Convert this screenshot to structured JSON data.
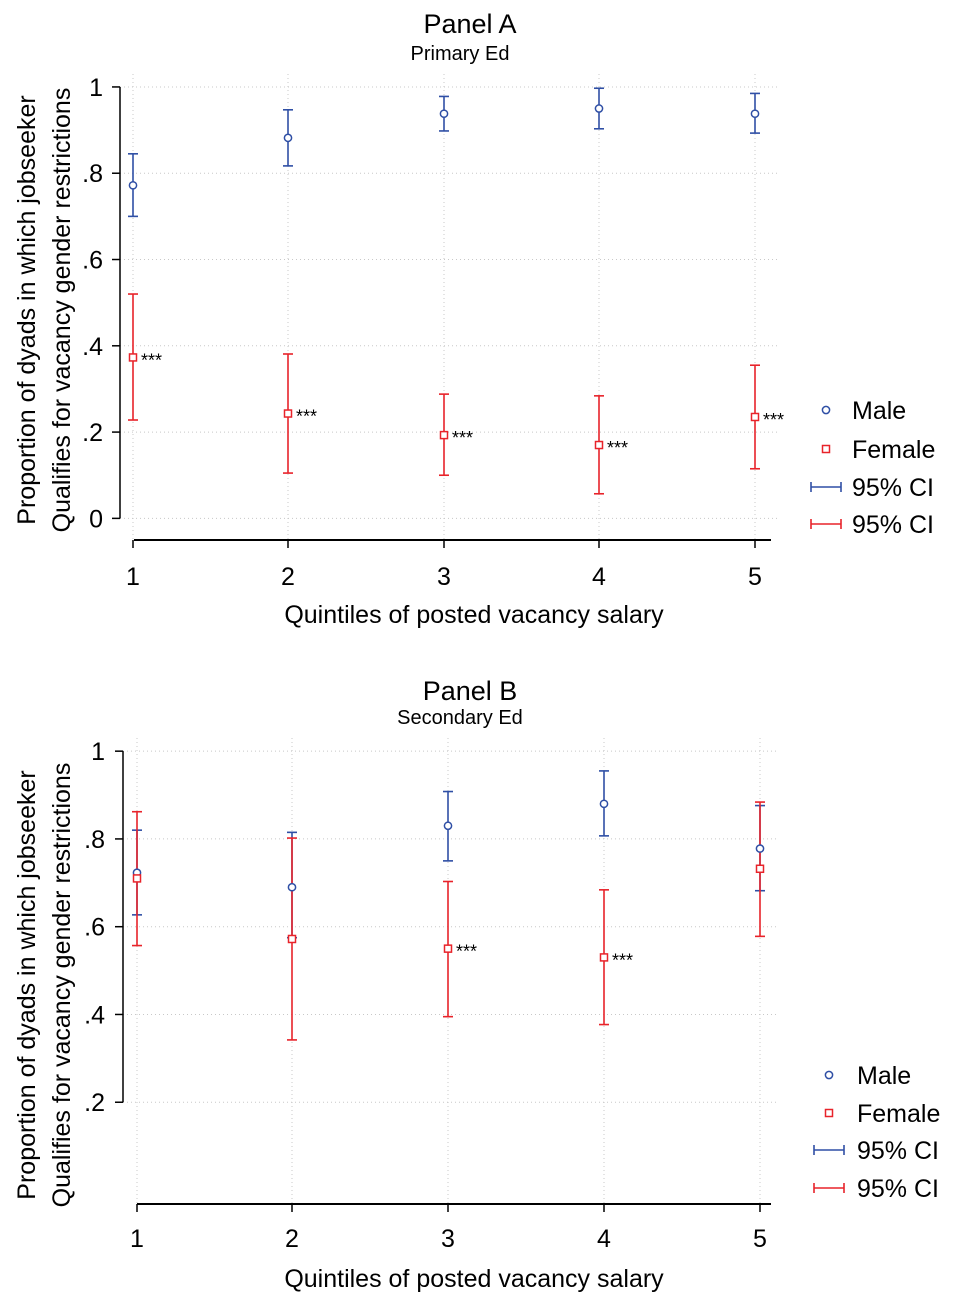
{
  "colors": {
    "male": "#2f4fa5",
    "female": "#e8232a",
    "grid": "#c8c8c8",
    "axis": "#000000"
  },
  "chart_data": [
    {
      "type": "scatter",
      "title": "Panel A",
      "subtitle": "Primary Ed",
      "xlabel": "Quintiles of posted vacancy salary",
      "ylabel_lines": [
        "Proportion of dyads in which jobseeker",
        "Qualifies for vacancy gender restrictions"
      ],
      "x": [
        1,
        2,
        3,
        4,
        5
      ],
      "x_ticks": [
        "1",
        "2",
        "3",
        "4",
        "5"
      ],
      "y_ticks": [
        {
          "value": 0,
          "label": "0"
        },
        {
          "value": 0.2,
          "label": ".2"
        },
        {
          "value": 0.4,
          "label": ".4"
        },
        {
          "value": 0.6,
          "label": ".6"
        },
        {
          "value": 0.8,
          "label": ".8"
        },
        {
          "value": 1,
          "label": "1"
        }
      ],
      "ylim": [
        -0.02,
        1.03
      ],
      "grid": true,
      "legend_position": "right",
      "series": [
        {
          "name": "Male",
          "marker": "circle",
          "values": [
            0.772,
            0.882,
            0.938,
            0.95,
            0.938
          ],
          "ci_lower": [
            0.7,
            0.817,
            0.898,
            0.903,
            0.893
          ],
          "ci_upper": [
            0.845,
            0.947,
            0.978,
            0.997,
            0.985
          ]
        },
        {
          "name": "Female",
          "marker": "square",
          "values": [
            0.373,
            0.243,
            0.193,
            0.17,
            0.235
          ],
          "ci_lower": [
            0.228,
            0.105,
            0.1,
            0.057,
            0.115
          ],
          "ci_upper": [
            0.52,
            0.381,
            0.288,
            0.284,
            0.355
          ]
        }
      ],
      "annotations": [
        {
          "x": 1,
          "y": 0.373,
          "text": "***"
        },
        {
          "x": 2,
          "y": 0.243,
          "text": "***"
        },
        {
          "x": 3,
          "y": 0.193,
          "text": "***"
        },
        {
          "x": 4,
          "y": 0.17,
          "text": "***"
        },
        {
          "x": 5,
          "y": 0.235,
          "text": "***"
        }
      ],
      "legend": [
        "Male",
        "Female",
        "95% CI",
        "95% CI"
      ]
    },
    {
      "type": "scatter",
      "title": "Panel B",
      "subtitle": "Secondary Ed",
      "xlabel": "Quintiles of posted vacancy salary",
      "ylabel_lines": [
        "Proportion of dyads in which jobseeker",
        "Qualifies for vacancy gender restrictions"
      ],
      "x": [
        1,
        2,
        3,
        4,
        5
      ],
      "x_ticks": [
        "1",
        "2",
        "3",
        "4",
        "5"
      ],
      "y_ticks": [
        {
          "value": 0.2,
          "label": ".2"
        },
        {
          "value": 0.4,
          "label": ".4"
        },
        {
          "value": 0.6,
          "label": ".6"
        },
        {
          "value": 0.8,
          "label": ".8"
        },
        {
          "value": 1,
          "label": "1"
        }
      ],
      "ylim": [
        0.0,
        1.03
      ],
      "grid": true,
      "legend_position": "right",
      "series": [
        {
          "name": "Male",
          "marker": "circle",
          "values": [
            0.723,
            0.69,
            0.83,
            0.88,
            0.778
          ],
          "ci_lower": [
            0.627,
            0.575,
            0.75,
            0.807,
            0.682
          ],
          "ci_upper": [
            0.82,
            0.815,
            0.908,
            0.955,
            0.876
          ]
        },
        {
          "name": "Female",
          "marker": "square",
          "values": [
            0.71,
            0.572,
            0.55,
            0.53,
            0.732
          ],
          "ci_lower": [
            0.557,
            0.342,
            0.395,
            0.377,
            0.578
          ],
          "ci_upper": [
            0.862,
            0.802,
            0.703,
            0.684,
            0.884
          ]
        }
      ],
      "annotations": [
        {
          "x": 3,
          "y": 0.55,
          "text": "***"
        },
        {
          "x": 4,
          "y": 0.53,
          "text": "***"
        }
      ],
      "legend": [
        "Male",
        "Female",
        "95% CI",
        "95% CI"
      ]
    }
  ]
}
